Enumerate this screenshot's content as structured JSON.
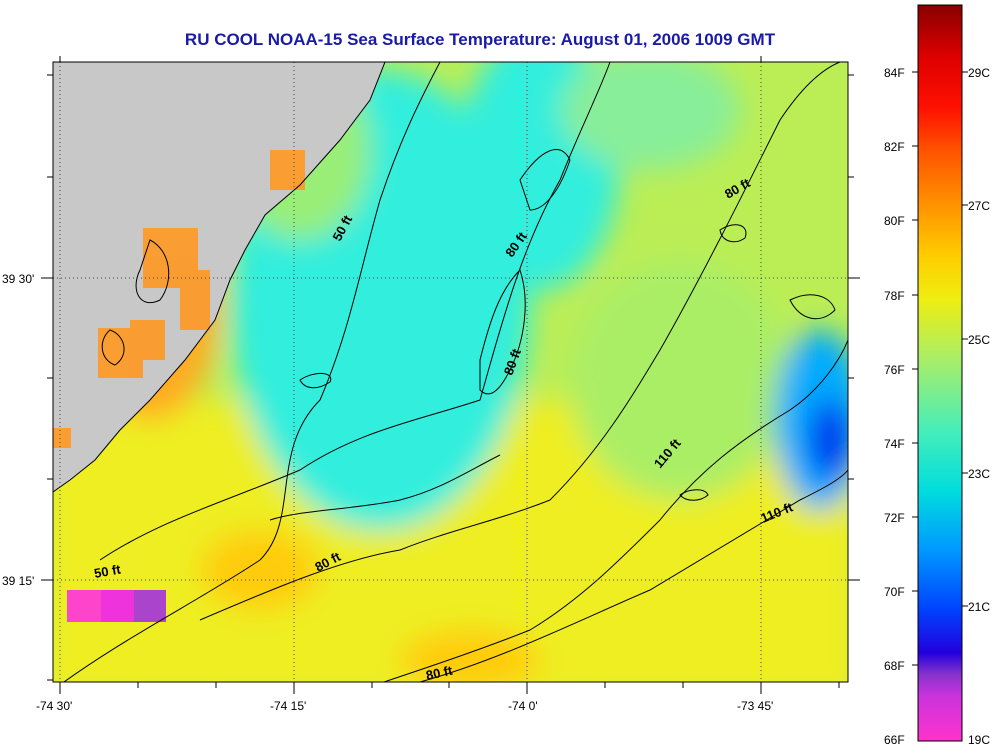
{
  "title": "RU COOL  NOAA-15  Sea Surface Temperature:  August 01, 2006 1009 GMT",
  "lon_ticks": [
    "-74 30'",
    "-74 15'",
    "-74 0'",
    "-73 45'"
  ],
  "lat_ticks": [
    "39 30'",
    "39 15'"
  ],
  "contour_labels": [
    {
      "text": "50 ft",
      "name": "contour-label-50ft-north"
    },
    {
      "text": "80 ft",
      "name": "contour-label-80ft-a"
    },
    {
      "text": "80 ft",
      "name": "contour-label-80ft-b"
    },
    {
      "text": "80 ft",
      "name": "contour-label-80ft-c"
    },
    {
      "text": "110 ft",
      "name": "contour-label-110ft-a"
    },
    {
      "text": "110 ft",
      "name": "contour-label-110ft-b"
    },
    {
      "text": "50 ft",
      "name": "contour-label-50ft-south"
    },
    {
      "text": "80 ft",
      "name": "contour-label-80ft-d"
    },
    {
      "text": "80 ft",
      "name": "contour-label-80ft-e"
    }
  ],
  "colorbar": {
    "fahrenheit_labels": [
      "84F",
      "82F",
      "80F",
      "78F",
      "76F",
      "74F",
      "72F",
      "70F",
      "68F",
      "66F"
    ],
    "celsius_labels": [
      "29C",
      "27C",
      "25C",
      "23C",
      "21C",
      "19C"
    ],
    "colors": [
      "#ff33cc",
      "#cc33dd",
      "#9933cc",
      "#2200dd",
      "#0022ff",
      "#0066ff",
      "#00aaff",
      "#00dddd",
      "#33eecc",
      "#88ee88",
      "#ccee44",
      "#ffee00",
      "#ffcc00",
      "#ff9900",
      "#ff6600",
      "#ff2200",
      "#ee0000",
      "#aa0000",
      "#880000"
    ]
  },
  "land_color": "#c8c8c8"
}
